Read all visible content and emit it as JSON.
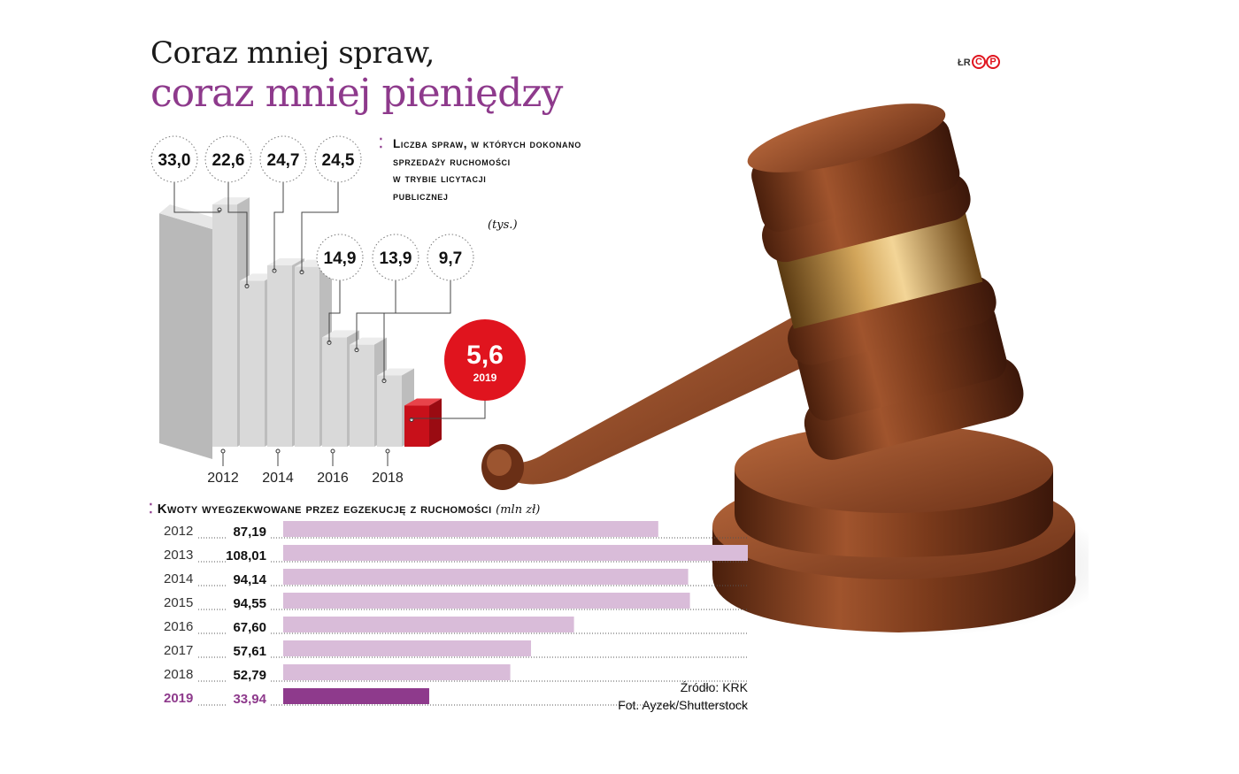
{
  "title_line1": "Coraz mniej spraw,",
  "title_line2": "coraz mniej pieniędzy",
  "credit_initials": "ŁR",
  "logo_letters": [
    "C",
    "P"
  ],
  "colors": {
    "accent": "#8e3a8c",
    "highlight": "#e0141e",
    "bar_light": "#d9bcd9",
    "bar_highlight": "#8e3a8c",
    "column": "#d4d4d4"
  },
  "icons": [
    "gavel-photo",
    "dots-bullet-icon"
  ],
  "chart1_heading": "Liczba spraw, w których dokonano sprzedaży ruchomości w trybie licytacji publicznej",
  "chart1_heading_lines": [
    "Liczba spraw, w których dokonano",
    "sprzedaży ruchomości",
    "w trybie licytacji",
    "publicznej"
  ],
  "chart1_unit": "(tys.)",
  "chart2_heading": "Kwoty wyegzekwowane przez egzekucję z ruchomości",
  "chart2_unit": "(mln zł)",
  "source": "Źródło: KRK",
  "photo_credit": "Fot. Ayzek/Shutterstock",
  "chart_data": [
    {
      "type": "bar",
      "title": "Liczba spraw, w których dokonano sprzedaży ruchomości w trybie licytacji publicznej",
      "ylabel": "(tys.)",
      "categories": [
        "2012",
        "2013",
        "2014",
        "2015",
        "2016",
        "2017",
        "2018",
        "2019"
      ],
      "values": [
        33.0,
        22.6,
        24.7,
        24.5,
        14.9,
        13.9,
        9.7,
        5.6
      ],
      "value_labels": [
        "33,0",
        "22,6",
        "24,7",
        "24,5",
        "14,9",
        "13,9",
        "9,7",
        "5,6"
      ],
      "tick_labels": [
        "2012",
        "2014",
        "2016",
        "2018"
      ],
      "highlight_label": "2019",
      "highlight_index": 7
    },
    {
      "type": "bar",
      "orientation": "horizontal",
      "title": "Kwoty wyegzekwowane przez egzekucję z ruchomości",
      "unit": "(mln zł)",
      "categories": [
        "2012",
        "2013",
        "2014",
        "2015",
        "2016",
        "2017",
        "2018",
        "2019"
      ],
      "values": [
        87.19,
        108.01,
        94.14,
        94.55,
        67.6,
        57.61,
        52.79,
        33.94
      ],
      "value_labels": [
        "87,19",
        "108,01",
        "94,14",
        "94,55",
        "67,60",
        "57,61",
        "52,79",
        "33,94"
      ],
      "highlight_index": 7
    }
  ]
}
